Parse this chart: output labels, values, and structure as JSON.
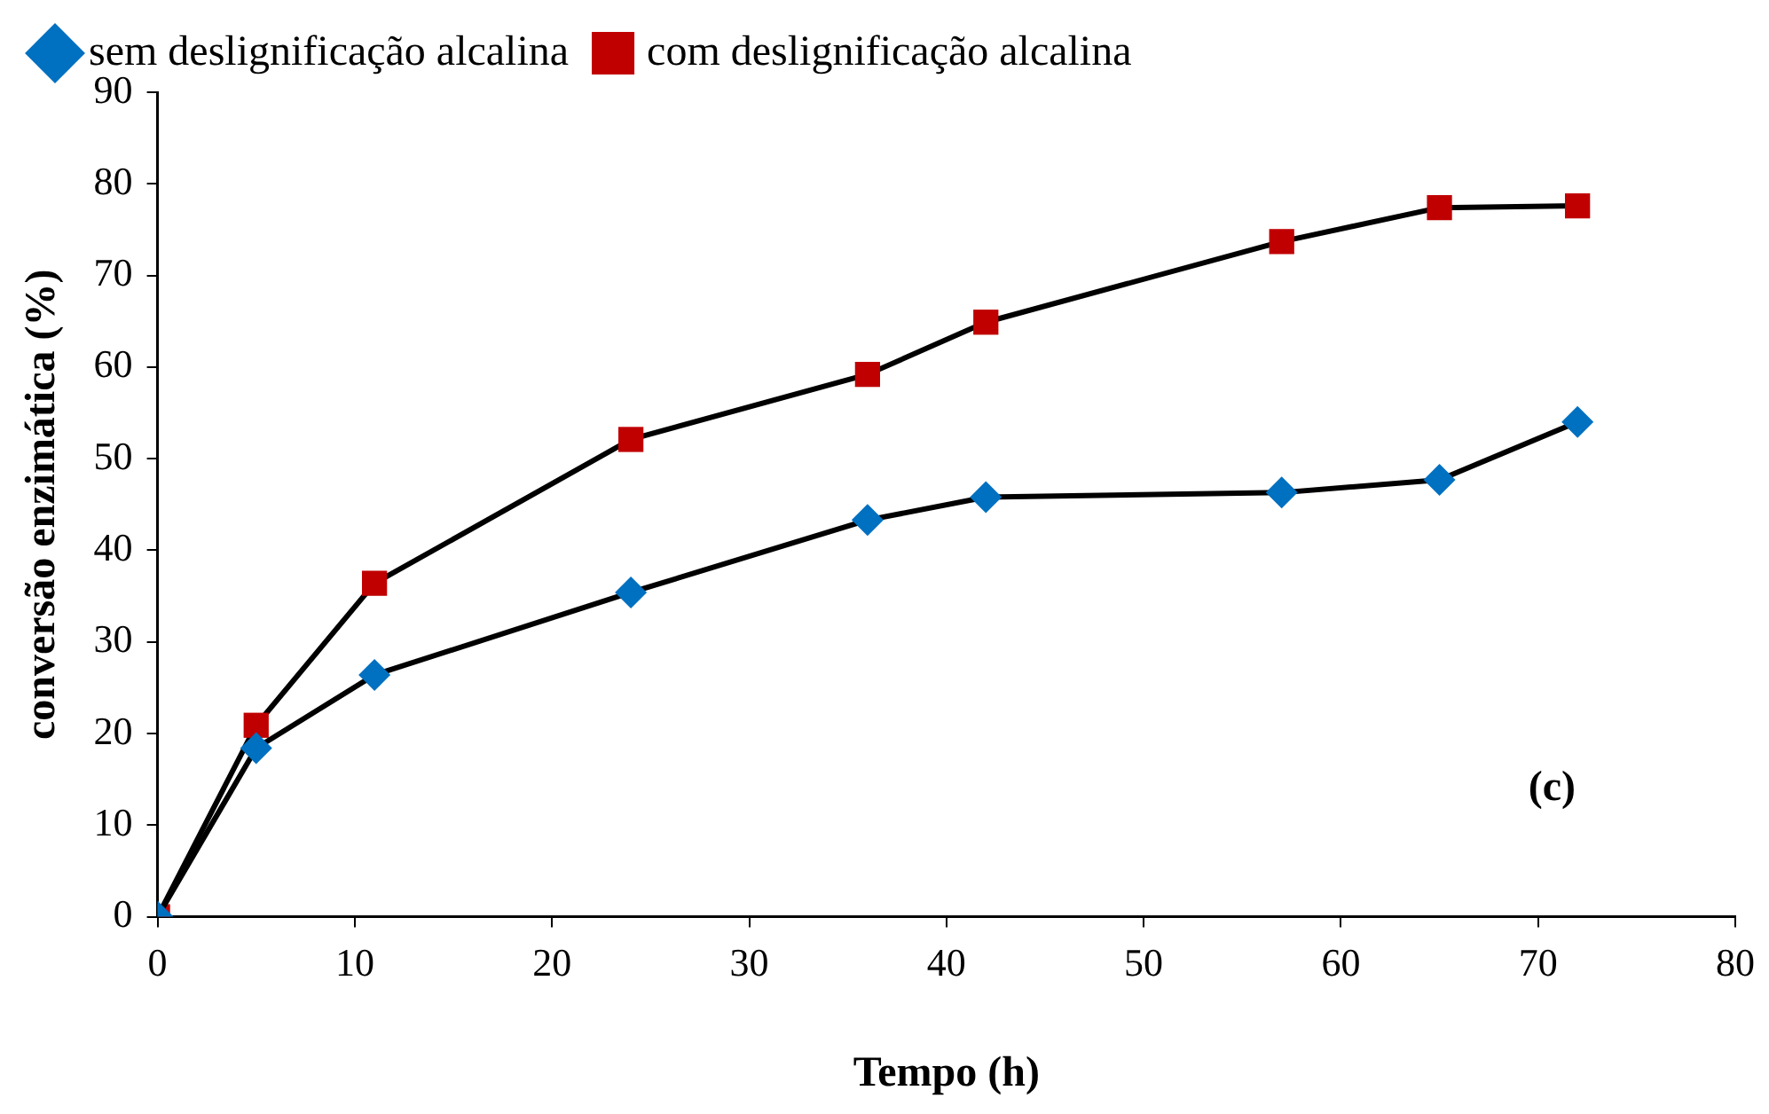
{
  "chart_data": {
    "type": "line",
    "xlabel": "Tempo (h)",
    "ylabel": "conversão enzimática (%)",
    "annotations": [
      "(c)"
    ],
    "x": [
      0,
      5,
      11,
      24,
      36,
      42,
      57,
      65,
      72
    ],
    "series": [
      {
        "name": "sem deslignificação alcalina",
        "color": "#0070c0",
        "marker": "diamond",
        "values": [
          0,
          18.4,
          26.4,
          35.4,
          43.3,
          45.8,
          46.3,
          47.7,
          54
        ]
      },
      {
        "name": "com deslignificação alcalina",
        "color": "#c00000",
        "marker": "square",
        "values": [
          0,
          20.9,
          36.4,
          52.1,
          59.2,
          64.9,
          73.7,
          77.4,
          77.6
        ]
      }
    ],
    "xlim": [
      0,
      80
    ],
    "xticks": [
      0,
      10,
      20,
      30,
      40,
      50,
      60,
      70,
      80
    ],
    "ylim": [
      0,
      90
    ],
    "yticks": [
      0,
      10,
      20,
      30,
      40,
      50,
      60,
      70,
      80,
      90
    ],
    "grid": false,
    "legend": "top",
    "line_style": "solid"
  }
}
